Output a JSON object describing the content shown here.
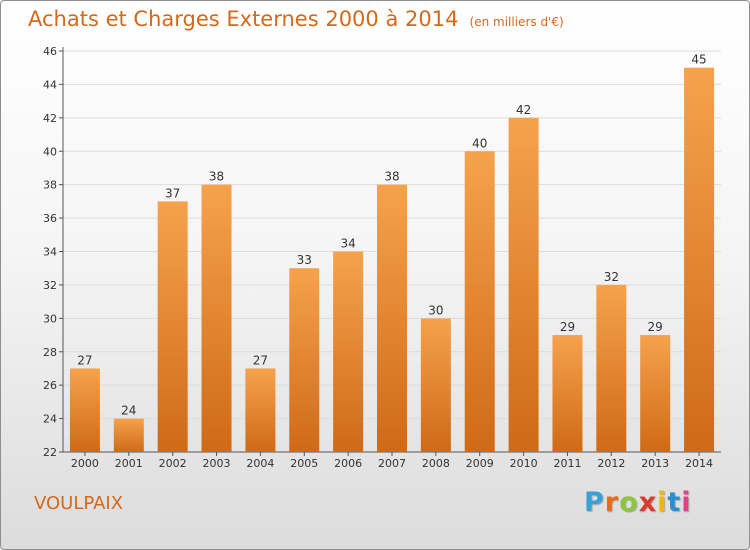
{
  "header": {
    "title": "Achats et Charges Externes 2000 à 2014",
    "unit": "(en milliers d'€)"
  },
  "footer": {
    "commune": "VOULPAIX",
    "logo_text": "Proxiti",
    "logo_colors": [
      "#3aa0d8",
      "#e86a1a",
      "#8cc63e",
      "#d93b2b",
      "#f0b800",
      "#2a8fd0",
      "#e2408a"
    ]
  },
  "colors": {
    "bar_light": "#f6a24d",
    "bar_dark": "#cf6a17",
    "grid": "#dcdcdc",
    "axis": "#555555",
    "title": "#d4691c"
  },
  "chart_data": {
    "type": "bar",
    "title": "Achats et Charges Externes 2000 à 2014",
    "subtitle": "(en milliers d'€)",
    "categories": [
      "2000",
      "2001",
      "2002",
      "2003",
      "2004",
      "2005",
      "2006",
      "2007",
      "2008",
      "2009",
      "2010",
      "2011",
      "2012",
      "2013",
      "2014"
    ],
    "values": [
      27,
      24,
      37,
      38,
      27,
      33,
      34,
      38,
      30,
      40,
      42,
      29,
      32,
      29,
      45
    ],
    "ylim": [
      22,
      46
    ],
    "yticks": [
      22,
      24,
      26,
      28,
      30,
      32,
      34,
      36,
      38,
      40,
      42,
      44,
      46
    ],
    "grid": true,
    "data_labels": true
  }
}
